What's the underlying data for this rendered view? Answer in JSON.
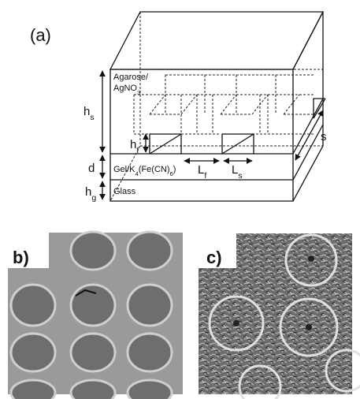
{
  "panel_a": {
    "label": "(a)",
    "agarose": [
      "Agarose/"
    ],
    "agno3": [
      "AgNO",
      "3"
    ],
    "hs": [
      "h",
      "s"
    ],
    "hf": [
      "h",
      "f"
    ],
    "d": [
      "d"
    ],
    "lf": [
      "L",
      "f"
    ],
    "ls": [
      "L",
      "s"
    ],
    "s": [
      "s"
    ],
    "gel": [
      "Gel/K",
      "4",
      "(Fe(CN)",
      "6",
      ")"
    ],
    "hg": [
      "h",
      "g"
    ],
    "glass": [
      "Glass"
    ]
  },
  "panel_b": {
    "label": "b)"
  },
  "panel_c": {
    "label": "c)"
  }
}
